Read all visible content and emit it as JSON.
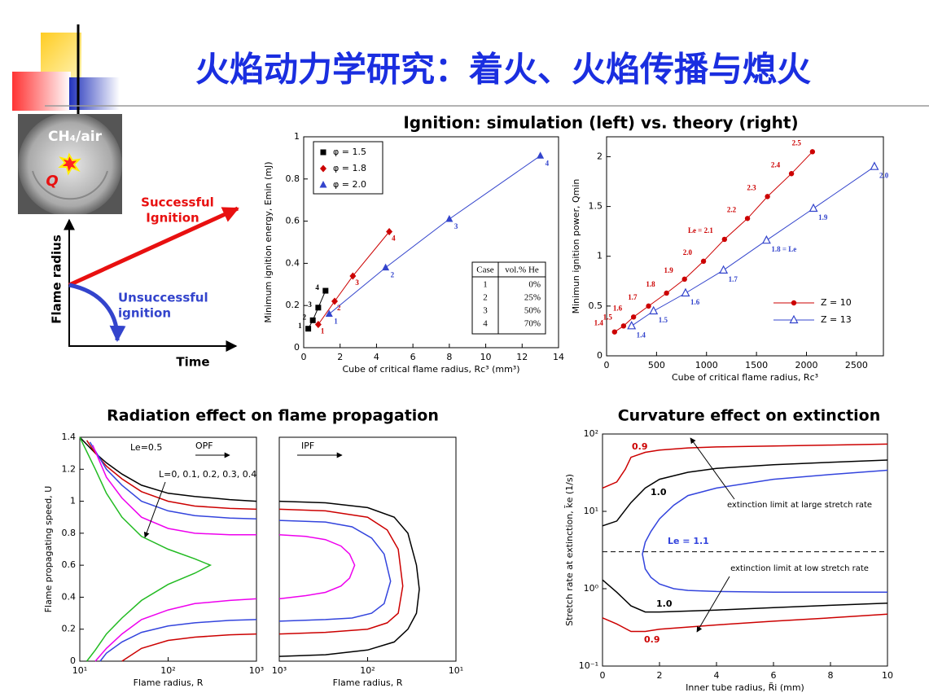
{
  "title": "火焰动力学研究：着火、火焰传播与熄火",
  "diagram": {
    "photo_label": "CH₄/air",
    "source": "Q",
    "success": [
      "Successful",
      "Ignition"
    ],
    "failure": [
      "Unsuccessful",
      "ignition"
    ],
    "ylabel": "Flame radius",
    "xlabel": "Time"
  },
  "chart_data": [
    {
      "type": "scatter",
      "title": "Ignition: simulation (left) vs. theory (right)",
      "xlabel": "Cube of critical flame radius, Rc³ (mm³)",
      "ylabel": "Minimum ignition energy, Emin (mJ)",
      "xlim": [
        0,
        14
      ],
      "xticks": [
        0,
        2,
        4,
        6,
        8,
        10,
        12,
        14
      ],
      "ylim": [
        0,
        1
      ],
      "yticks": [
        0,
        0.2,
        0.4,
        0.6,
        0.8,
        1
      ],
      "legend": "upper left",
      "legend_box": true,
      "series": [
        {
          "name": "φ = 1.5",
          "color": "#000000",
          "marker": "square",
          "x": [
            0.25,
            0.5,
            0.8,
            1.2
          ],
          "values": [
            0.09,
            0.13,
            0.19,
            0.27
          ],
          "labels": [
            "1",
            "2",
            "3",
            "4"
          ]
        },
        {
          "name": "φ = 1.8",
          "color": "#cc0000",
          "marker": "diamond",
          "x": [
            0.8,
            1.7,
            2.7,
            4.7
          ],
          "values": [
            0.11,
            0.22,
            0.34,
            0.55
          ],
          "labels": [
            "1",
            "2",
            "3",
            "4"
          ]
        },
        {
          "name": "φ = 2.0",
          "color": "#3344cc",
          "marker": "triangle",
          "x": [
            1.4,
            4.5,
            8,
            13
          ],
          "values": [
            0.16,
            0.38,
            0.61,
            0.91
          ],
          "labels": [
            "1",
            "2",
            "3",
            "4"
          ]
        }
      ],
      "table": {
        "header": [
          "Case",
          "vol.% He"
        ],
        "rows": [
          [
            "1",
            "0%"
          ],
          [
            "2",
            "25%"
          ],
          [
            "3",
            "50%"
          ],
          [
            "4",
            "70%"
          ]
        ]
      }
    },
    {
      "type": "scatter",
      "xlabel": "Cube of critical flame radius, Rc³",
      "ylabel": "Minimun ignition power, Qmin",
      "xlim": [
        0,
        2770
      ],
      "xticks": [
        0,
        500,
        1000,
        1500,
        2000,
        2500
      ],
      "ylim": [
        0,
        2.2
      ],
      "yticks": [
        0,
        0.5,
        1,
        1.5,
        2
      ],
      "legend": "lower right",
      "legend_box": false,
      "series": [
        {
          "name": "Z = 10",
          "color": "#cc0000",
          "marker": "circle",
          "x": [
            80,
            170,
            270,
            420,
            600,
            780,
            970,
            1180,
            1410,
            1610,
            1850,
            2060
          ],
          "values": [
            0.24,
            0.3,
            0.39,
            0.5,
            0.63,
            0.77,
            0.95,
            1.17,
            1.38,
            1.6,
            1.83,
            2.05
          ],
          "labels": [
            "1.4",
            "1.5",
            "1.6",
            "1.7",
            "1.8",
            "1.9",
            "2.0",
            "Le = 2.1",
            "2.2",
            "2.3",
            "2.4",
            "2.5"
          ]
        },
        {
          "name": "Z = 13",
          "color": "#3344cc",
          "marker": "triangle-open",
          "x": [
            250,
            470,
            790,
            1170,
            1600,
            2070,
            2680
          ],
          "values": [
            0.3,
            0.45,
            0.63,
            0.86,
            1.16,
            1.48,
            1.9
          ],
          "labels": [
            "1.4",
            "1.5",
            "1.6",
            "1.7",
            "1.8 = Le",
            "1.9",
            "2.0"
          ]
        }
      ]
    },
    {
      "type": "line",
      "title": "Radiation effect on flame propagation",
      "xlabel": "Flame radius, R",
      "ylabel": "Flame propagating speed, U",
      "xscale": "log",
      "xlim": [
        10,
        1000
      ],
      "xticks": [
        {
          "value": 10,
          "label": "10¹"
        },
        {
          "value": 100,
          "label": "10²"
        },
        {
          "value": 1000,
          "label": "10³"
        }
      ],
      "ylim": [
        0,
        1.4
      ],
      "yticks": [
        0,
        0.2,
        0.4,
        0.6,
        0.8,
        1,
        1.2,
        1.4
      ],
      "annotations": [
        "Le=0.5",
        "OPF",
        "L=0, 0.1, 0.2, 0.3, 0.4"
      ],
      "series": [
        {
          "color": "#000000",
          "x": [
            10,
            15,
            20,
            30,
            50,
            100,
            200,
            500,
            1000
          ],
          "values": [
            1.4,
            1.3,
            1.24,
            1.17,
            1.1,
            1.05,
            1.03,
            1.01,
            1.0
          ]
        },
        {
          "color": "#cc0000",
          "x": [
            12,
            15,
            20,
            30,
            50,
            100,
            200,
            500,
            1000
          ],
          "values": [
            1.38,
            1.3,
            1.22,
            1.14,
            1.06,
            1.0,
            0.97,
            0.955,
            0.95
          ]
        },
        {
          "color": "#cc0000",
          "x": [
            30,
            50,
            100,
            200,
            500,
            1000
          ],
          "values": [
            0,
            0.08,
            0.13,
            0.15,
            0.165,
            0.17
          ]
        },
        {
          "color": "#3344dd",
          "x": [
            13,
            20,
            30,
            50,
            100,
            200,
            500,
            1000
          ],
          "values": [
            1.37,
            1.2,
            1.1,
            1.0,
            0.94,
            0.91,
            0.895,
            0.89
          ]
        },
        {
          "color": "#3344dd",
          "x": [
            17,
            20,
            30,
            50,
            100,
            200,
            500,
            1000
          ],
          "values": [
            0,
            0.05,
            0.12,
            0.18,
            0.22,
            0.24,
            0.255,
            0.26
          ]
        },
        {
          "color": "#ee00ee",
          "x": [
            14,
            20,
            30,
            50,
            100,
            200,
            500,
            1000
          ],
          "values": [
            1.35,
            1.15,
            1.02,
            0.9,
            0.83,
            0.8,
            0.79,
            0.79
          ]
        },
        {
          "color": "#ee00ee",
          "x": [
            15,
            20,
            30,
            50,
            100,
            200,
            500,
            1000
          ],
          "values": [
            0,
            0.08,
            0.17,
            0.26,
            0.32,
            0.36,
            0.38,
            0.39
          ]
        },
        {
          "color": "#22bb22",
          "x": [
            10,
            15,
            20,
            30,
            50,
            100,
            200,
            300,
            200,
            100,
            50,
            30,
            20,
            15,
            12
          ],
          "values": [
            1.4,
            1.2,
            1.05,
            0.9,
            0.78,
            0.7,
            0.64,
            0.6,
            0.55,
            0.48,
            0.38,
            0.27,
            0.17,
            0.07,
            0
          ]
        }
      ]
    },
    {
      "type": "line",
      "xlabel": "Flame radius, R",
      "xscale": "log",
      "xlim": [
        1000,
        10
      ],
      "xticks": [
        {
          "value": 1000,
          "label": "10³"
        },
        {
          "value": 100,
          "label": "10²"
        },
        {
          "value": 10,
          "label": "10¹"
        }
      ],
      "ylim": [
        0,
        1.4
      ],
      "annotations": [
        "IPF"
      ],
      "series": [
        {
          "color": "#000000",
          "x": [
            1000,
            300,
            100,
            50,
            35,
            28,
            26,
            28,
            35,
            50,
            100,
            300,
            1000
          ],
          "values": [
            1.0,
            0.99,
            0.96,
            0.9,
            0.8,
            0.6,
            0.45,
            0.3,
            0.2,
            0.12,
            0.07,
            0.04,
            0.03
          ]
        },
        {
          "color": "#cc0000",
          "x": [
            1000,
            300,
            100,
            60,
            45,
            40,
            45,
            60,
            100,
            300,
            1000
          ],
          "values": [
            0.95,
            0.94,
            0.9,
            0.82,
            0.7,
            0.47,
            0.3,
            0.24,
            0.2,
            0.18,
            0.17
          ]
        },
        {
          "color": "#3344dd",
          "x": [
            1000,
            300,
            150,
            90,
            65,
            55,
            65,
            90,
            150,
            300,
            1000
          ],
          "values": [
            0.88,
            0.87,
            0.84,
            0.77,
            0.67,
            0.5,
            0.36,
            0.3,
            0.27,
            0.26,
            0.25
          ]
        },
        {
          "color": "#ee00ee",
          "x": [
            1000,
            500,
            300,
            200,
            160,
            140,
            160,
            200,
            300,
            500,
            1000
          ],
          "values": [
            0.79,
            0.78,
            0.76,
            0.72,
            0.67,
            0.6,
            0.52,
            0.47,
            0.43,
            0.41,
            0.39
          ]
        }
      ]
    },
    {
      "type": "line",
      "title": "Curvature effect on extinction",
      "xlabel": "Inner tube radius, R̃i (mm)",
      "ylabel": "Stretch rate at extinction, k̃e (1/s)",
      "xlim": [
        0,
        10
      ],
      "xticks": [
        0,
        2,
        4,
        6,
        8,
        10
      ],
      "yscale": "log",
      "ylim": [
        0.1,
        100
      ],
      "yticks": [
        {
          "value": 0.1,
          "label": "10⁻¹"
        },
        {
          "value": 1,
          "label": "10⁰"
        },
        {
          "value": 10,
          "label": "10¹"
        },
        {
          "value": 100,
          "label": "10²"
        }
      ],
      "reference_line": 3,
      "annotations": [
        "0.9",
        "1.0",
        "Le = 1.1",
        "1.0",
        "0.9",
        "extinction limit at large stretch rate",
        "extinction limit at low stretch rate"
      ],
      "series": [
        {
          "color": "#cc0000",
          "x": [
            0,
            0.5,
            0.8,
            1,
            1.5,
            2,
            3,
            4,
            6,
            8,
            10
          ],
          "values": [
            20,
            24,
            35,
            50,
            58,
            62,
            66,
            68,
            70,
            72,
            74
          ]
        },
        {
          "color": "#000000",
          "x": [
            0,
            0.5,
            1,
            1.5,
            2,
            3,
            4,
            6,
            8,
            10
          ],
          "values": [
            6.5,
            7.5,
            13,
            20,
            26,
            32,
            36,
            40,
            43,
            46
          ]
        },
        {
          "color": "#3344dd",
          "x": [
            10,
            8,
            6,
            4,
            3,
            2.5,
            2,
            1.7,
            1.5,
            1.4,
            1.5,
            1.7,
            2,
            2.5,
            3,
            4,
            6,
            8,
            10
          ],
          "values": [
            34,
            30,
            26,
            20,
            16,
            12,
            8,
            5.5,
            4,
            2.8,
            1.8,
            1.4,
            1.15,
            1.0,
            0.95,
            0.92,
            0.9,
            0.9,
            0.9
          ]
        },
        {
          "color": "#000000",
          "x": [
            0,
            0.5,
            1,
            1.5,
            2,
            4,
            6,
            8,
            10
          ],
          "values": [
            1.3,
            0.9,
            0.6,
            0.5,
            0.5,
            0.53,
            0.57,
            0.61,
            0.65
          ]
        },
        {
          "color": "#cc0000",
          "x": [
            0,
            0.5,
            1,
            1.5,
            2,
            4,
            6,
            8,
            10
          ],
          "values": [
            0.42,
            0.35,
            0.28,
            0.28,
            0.3,
            0.34,
            0.38,
            0.42,
            0.47
          ]
        }
      ]
    }
  ]
}
